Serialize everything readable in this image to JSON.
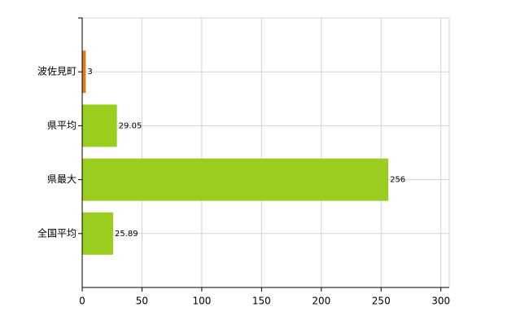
{
  "chart_data": {
    "type": "bar",
    "orientation": "horizontal",
    "categories": [
      "波佐見町",
      "県平均",
      "県最大",
      "全国平均"
    ],
    "values": [
      3,
      29.05,
      256,
      25.89
    ],
    "colors": [
      "#e07b20",
      "#9acd1e",
      "#9acd1e",
      "#9acd1e"
    ],
    "xlim": [
      0,
      307
    ],
    "xticks": [
      0,
      50,
      100,
      150,
      200,
      250,
      300
    ],
    "grid": true
  }
}
